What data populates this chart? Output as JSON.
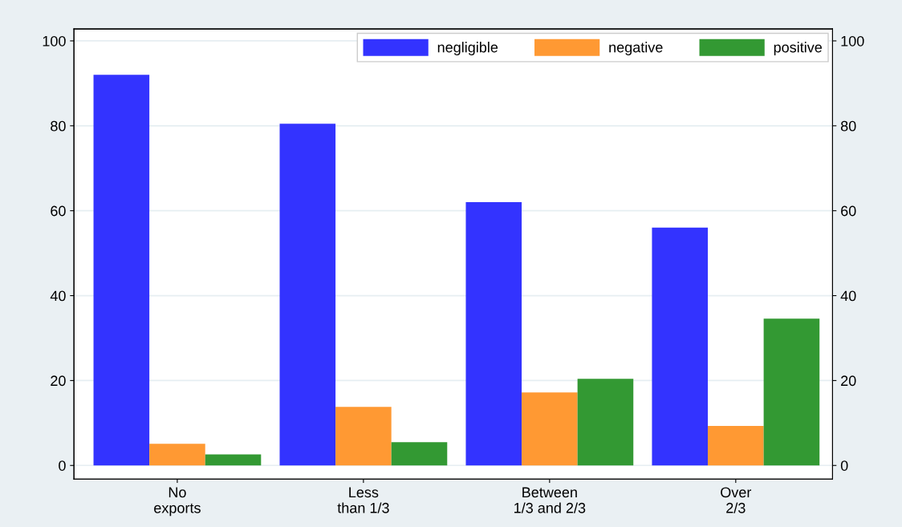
{
  "chart_data": {
    "type": "bar",
    "categories": [
      "No\nexports",
      "Less\nthan 1/3",
      "Between\n1/3 and 2/3",
      "Over\n2/3"
    ],
    "series": [
      {
        "name": "negligible",
        "color": "#3333ff",
        "values": [
          92,
          80.5,
          62,
          56
        ]
      },
      {
        "name": "negative",
        "color": "#ff9933",
        "values": [
          5.1,
          13.8,
          17.2,
          9.3
        ]
      },
      {
        "name": "positive",
        "color": "#339933",
        "values": [
          2.6,
          5.5,
          20.4,
          34.6
        ]
      }
    ],
    "ylim": [
      -3.2,
      102.8
    ],
    "yticks": [
      0,
      20,
      40,
      60,
      80,
      100
    ],
    "y2lim": [
      -3.2,
      102.8
    ],
    "y2ticks": [
      0,
      20,
      40,
      60,
      80,
      100
    ],
    "grid": "y",
    "legend": "top right"
  }
}
